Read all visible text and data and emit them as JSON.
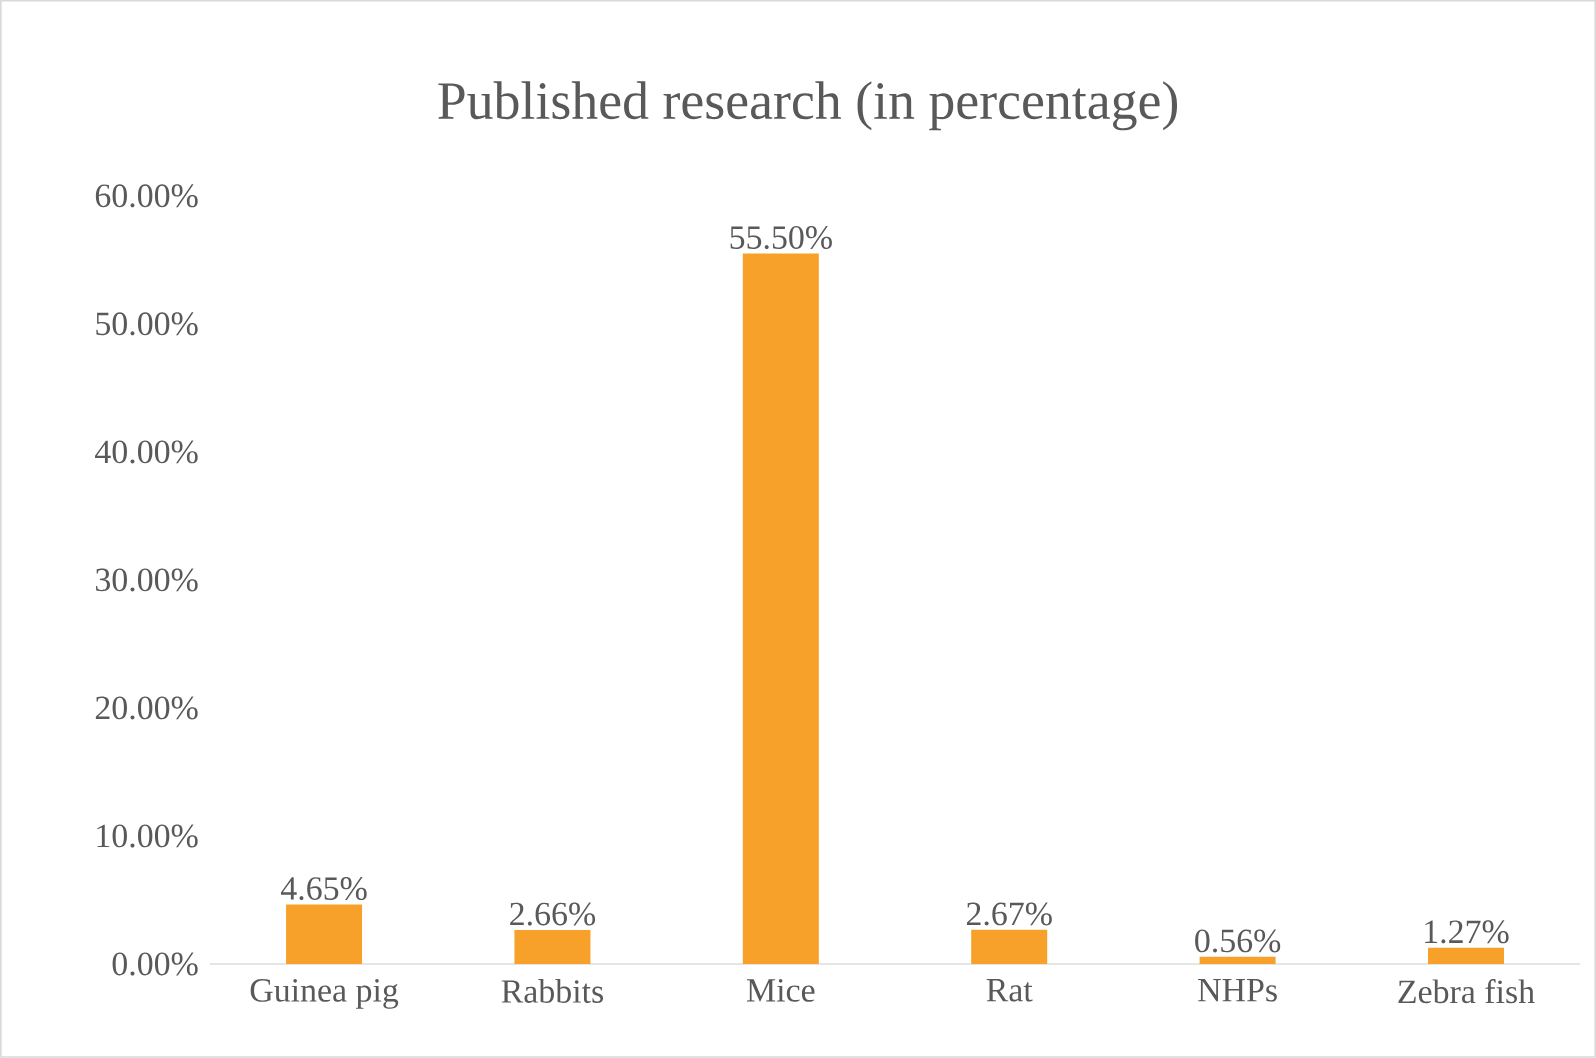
{
  "chart_data": {
    "type": "bar",
    "title": "Published research (in percentage)",
    "categories": [
      "Guinea pig",
      "Rabbits",
      "Mice",
      "Rat",
      "NHPs",
      "Zebra fish"
    ],
    "values": [
      4.65,
      2.66,
      55.5,
      2.67,
      0.56,
      1.27
    ],
    "value_labels": [
      "4.65%",
      "2.66%",
      "55.50%",
      "2.67%",
      "0.56%",
      "1.27%"
    ],
    "color": "#f7a12b",
    "ylim": [
      0,
      60
    ],
    "yticks": [
      {
        "value": 0,
        "label": "0.00%"
      },
      {
        "value": 10,
        "label": "10.00%"
      },
      {
        "value": 20,
        "label": "20.00%"
      },
      {
        "value": 30,
        "label": "30.00%"
      },
      {
        "value": 40,
        "label": "40.00%"
      },
      {
        "value": 50,
        "label": "50.00%"
      },
      {
        "value": 60,
        "label": "60.00%"
      }
    ]
  }
}
